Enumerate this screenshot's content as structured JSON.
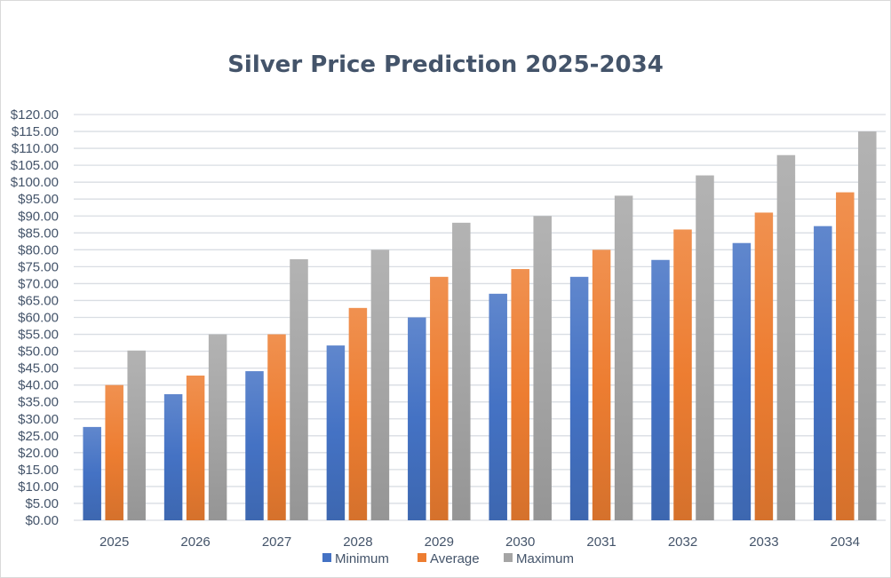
{
  "chart_data": {
    "type": "bar",
    "title": "Silver Price Prediction 2025-2034",
    "xlabel": "",
    "ylabel": "",
    "categories": [
      "2025",
      "2026",
      "2027",
      "2028",
      "2029",
      "2030",
      "2031",
      "2032",
      "2033",
      "2034"
    ],
    "series": [
      {
        "name": "Minimum",
        "color": "#4472c4",
        "values": [
          27.6,
          37.3,
          44.1,
          51.7,
          60,
          67,
          72,
          77,
          82,
          87
        ]
      },
      {
        "name": "Average",
        "color": "#ed7d31",
        "values": [
          40,
          42.8,
          55,
          62.8,
          72,
          74.3,
          80,
          86,
          91,
          97
        ]
      },
      {
        "name": "Maximum",
        "color": "#a5a5a5",
        "values": [
          50.2,
          55,
          77.2,
          80,
          88,
          90,
          96,
          102,
          108,
          115
        ]
      }
    ],
    "ylim": [
      0,
      120
    ],
    "ytick_step": 5,
    "ytick_labels": [
      "$0.00",
      "$5.00",
      "$10.00",
      "$15.00",
      "$20.00",
      "$25.00",
      "$30.00",
      "$35.00",
      "$40.00",
      "$45.00",
      "$50.00",
      "$55.00",
      "$60.00",
      "$65.00",
      "$70.00",
      "$75.00",
      "$80.00",
      "$85.00",
      "$90.00",
      "$95.00",
      "$100.00",
      "$105.00",
      "$110.00",
      "$115.00",
      "$120.00"
    ],
    "grid": true,
    "legend_position": "bottom"
  }
}
